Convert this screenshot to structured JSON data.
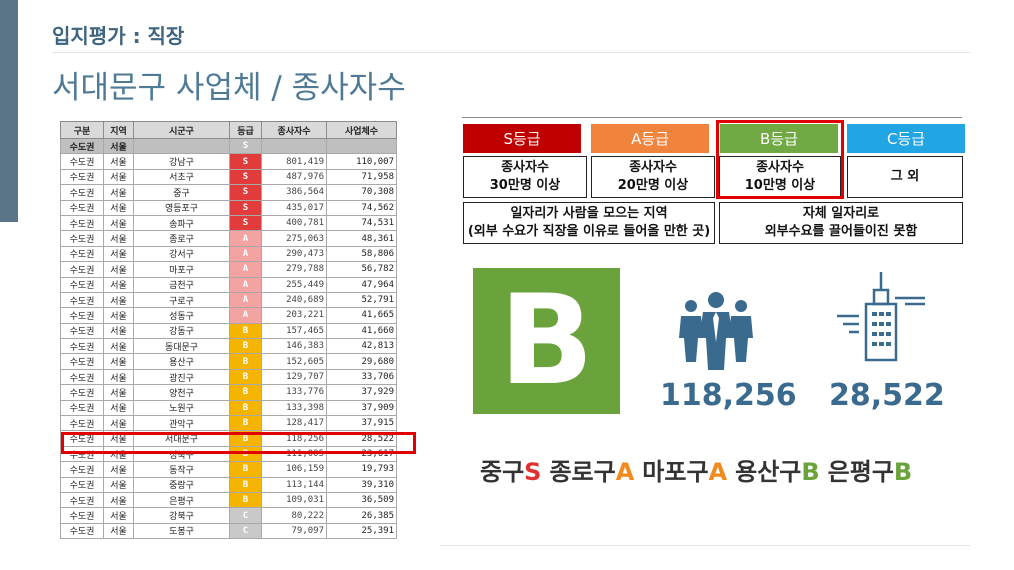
{
  "header": {
    "kicker": "입지평가 : 직장",
    "title": "서대문구 사업체 / 종사자수"
  },
  "table": {
    "headers": [
      "구분",
      "지역",
      "시군구",
      "등급",
      "종사자수",
      "사업체수"
    ],
    "subheader": [
      "수도권",
      "서울",
      "",
      "S",
      "",
      ""
    ],
    "rows": [
      [
        "수도권",
        "서울",
        "강남구",
        "S",
        "801,419",
        "110,007"
      ],
      [
        "수도권",
        "서울",
        "서초구",
        "S",
        "487,976",
        "71,958"
      ],
      [
        "수도권",
        "서울",
        "중구",
        "S",
        "386,564",
        "70,308"
      ],
      [
        "수도권",
        "서울",
        "영등포구",
        "S",
        "435,017",
        "74,562"
      ],
      [
        "수도권",
        "서울",
        "송파구",
        "S",
        "400,781",
        "74,531"
      ],
      [
        "수도권",
        "서울",
        "종로구",
        "A",
        "275,063",
        "48,361"
      ],
      [
        "수도권",
        "서울",
        "강서구",
        "A",
        "290,473",
        "58,806"
      ],
      [
        "수도권",
        "서울",
        "마포구",
        "A",
        "279,788",
        "56,782"
      ],
      [
        "수도권",
        "서울",
        "금천구",
        "A",
        "255,449",
        "47,964"
      ],
      [
        "수도권",
        "서울",
        "구로구",
        "A",
        "240,689",
        "52,791"
      ],
      [
        "수도권",
        "서울",
        "성동구",
        "A",
        "203,221",
        "41,665"
      ],
      [
        "수도권",
        "서울",
        "강동구",
        "B",
        "157,465",
        "41,660"
      ],
      [
        "수도권",
        "서울",
        "동대문구",
        "B",
        "146,383",
        "42,813"
      ],
      [
        "수도권",
        "서울",
        "용산구",
        "B",
        "152,605",
        "29,680"
      ],
      [
        "수도권",
        "서울",
        "광진구",
        "B",
        "129,707",
        "33,706"
      ],
      [
        "수도권",
        "서울",
        "양천구",
        "B",
        "133,776",
        "37,929"
      ],
      [
        "수도권",
        "서울",
        "노원구",
        "B",
        "133,398",
        "37,909"
      ],
      [
        "수도권",
        "서울",
        "관악구",
        "B",
        "128,417",
        "37,915"
      ],
      [
        "수도권",
        "서울",
        "서대문구",
        "B",
        "118,256",
        "28,522"
      ],
      [
        "수도권",
        "서울",
        "성북구",
        "B",
        "111,005",
        "23,617"
      ],
      [
        "수도권",
        "서울",
        "동작구",
        "B",
        "106,159",
        "19,793"
      ],
      [
        "수도권",
        "서울",
        "중랑구",
        "B",
        "113,144",
        "39,310"
      ],
      [
        "수도권",
        "서울",
        "은평구",
        "B",
        "109,031",
        "36,509"
      ],
      [
        "수도권",
        "서울",
        "강북구",
        "C",
        "80,222",
        "26,385"
      ],
      [
        "수도권",
        "서울",
        "도봉구",
        "C",
        "79,097",
        "25,391"
      ]
    ],
    "highlight_row": "서대문구"
  },
  "grades": {
    "headers": [
      {
        "label": "S등급",
        "color": "#c00000"
      },
      {
        "label": "A등급",
        "color": "#f0843c"
      },
      {
        "label": "B등급",
        "color": "#70a844"
      },
      {
        "label": "C등급",
        "color": "#21a6e3"
      }
    ],
    "criteria": [
      {
        "line1": "종사자수",
        "line2": "30만명 이상"
      },
      {
        "line1": "종사자수",
        "line2": "20만명 이상"
      },
      {
        "line1": "종사자수",
        "line2": "10만명 이상"
      },
      {
        "line1": "그 외",
        "line2": ""
      }
    ],
    "desc_left": {
      "line1": "일자리가 사람을 모으는 지역",
      "line2": "(외부 수요가 직장을 이유로 들어올 만한 곳)"
    },
    "desc_right": {
      "line1": "자체 일자리로",
      "line2": "외부수요를 끌어들이진 못함"
    }
  },
  "result": {
    "grade": "B",
    "employees": "118,256",
    "businesses": "28,522",
    "icons": [
      "people-icon",
      "building-icon"
    ],
    "accent": "#6aa33b",
    "stat_color": "#3a6b8f"
  },
  "ranking": [
    {
      "name": "중구",
      "grade": "S"
    },
    {
      "name": "종로구",
      "grade": "A"
    },
    {
      "name": "마포구",
      "grade": "A"
    },
    {
      "name": "용산구",
      "grade": "B"
    },
    {
      "name": "은평구",
      "grade": "B"
    }
  ]
}
